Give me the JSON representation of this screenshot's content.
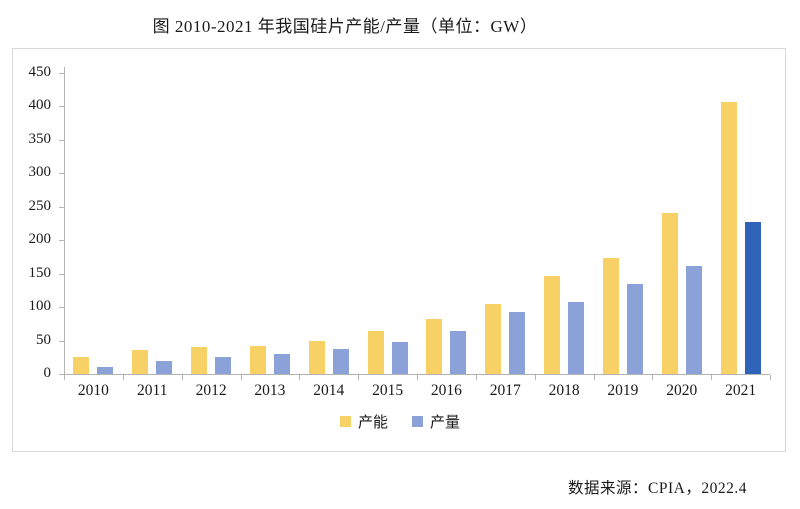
{
  "title": "图 2010-2021 年我国硅片产能/产量（单位：GW）",
  "source": "数据来源：CPIA，2022.4",
  "legend": {
    "items": [
      {
        "label": "产能",
        "color": "#F7D166"
      },
      {
        "label": "产量",
        "color": "#8BA2D8"
      }
    ]
  },
  "colors": {
    "capacity_bar": "#F7D166",
    "output_bar": "#8BA2D8",
    "output_bar_2021_highlight": "#2F63B7",
    "axis": "#b3b3b3",
    "box_border": "#d7d7d7",
    "text": "#1a1a1a"
  },
  "chart_data": {
    "type": "bar",
    "title": "图 2010-2021 年我国硅片产能/产量（单位：GW）",
    "categories": [
      "2010",
      "2011",
      "2012",
      "2013",
      "2014",
      "2015",
      "2016",
      "2017",
      "2018",
      "2019",
      "2020",
      "2021"
    ],
    "series": [
      {
        "name": "产能",
        "color": "#F7D166",
        "values": [
          25,
          36,
          41,
          42,
          50,
          65,
          82,
          105,
          146,
          174,
          240,
          407
        ]
      },
      {
        "name": "产量",
        "color": "#8BA2D8",
        "values": [
          11,
          20,
          26,
          30,
          38,
          48,
          64,
          92,
          108,
          135,
          161,
          227
        ],
        "highlight": {
          "index": 11,
          "color": "#2F63B7"
        }
      }
    ],
    "xlabel": "",
    "ylabel": "",
    "unit": "GW",
    "ylim": [
      0,
      450
    ],
    "yticks": [
      0,
      50,
      100,
      150,
      200,
      250,
      300,
      350,
      400,
      450
    ],
    "grid": false,
    "legend_position": "bottom"
  }
}
